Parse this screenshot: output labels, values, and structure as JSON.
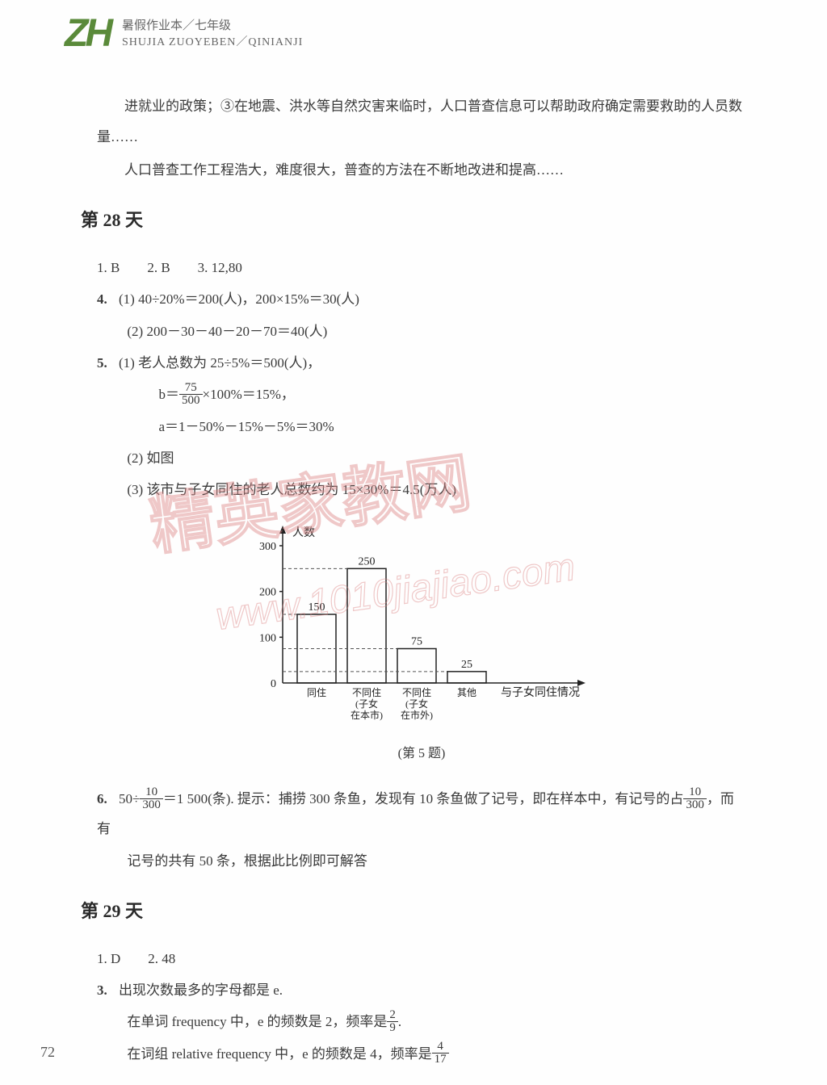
{
  "header": {
    "logo": "ZH",
    "title_cn": "暑假作业本／七年级",
    "title_py": "SHUJIA ZUOYEBEN／QINIANJI"
  },
  "intro": {
    "p1": "进就业的政策；③在地震、洪水等自然灾害来临时，人口普查信息可以帮助政府确定需要救助的人员数量……",
    "p2": "人口普查工作工程浩大，难度很大，普查的方法在不断地改进和提高……"
  },
  "day28": {
    "title": "第 28 天",
    "q1_3": "1.  B　　2.  B　　3.  12,80",
    "q4_label": "4.",
    "q4_1": "(1) 40÷20%＝200(人)，200×15%＝30(人)",
    "q4_2": "(2) 200－30－40－20－70＝40(人)",
    "q5_label": "5.",
    "q5_1": "(1) 老人总数为 25÷5%＝500(人)，",
    "q5_b_pre": "b＝",
    "q5_b_num": "75",
    "q5_b_den": "500",
    "q5_b_post": "×100%＝15%，",
    "q5_a": "a＝1－50%－15%－5%＝30%",
    "q5_2": "(2) 如图",
    "q5_3": "(3) 该市与子女同住的老人总数约为 15×30%＝4.5(万人)",
    "chart": {
      "y_label": "人数",
      "x_label": "与子女同住情况",
      "y_ticks": [
        0,
        100,
        200,
        300
      ],
      "categories": [
        "同住",
        "不同住\n(子女\n在本市)",
        "不同住\n(子女\n在市外)",
        "其他"
      ],
      "bar_values": [
        150,
        250,
        75,
        25
      ],
      "caption": "(第 5 题)"
    },
    "q6_label": "6.",
    "q6_pre": "50÷",
    "q6_f1_num": "10",
    "q6_f1_den": "300",
    "q6_mid": "＝1 500(条). 提示：捕捞 300 条鱼，发现有 10 条鱼做了记号，即在样本中，有记号的占",
    "q6_f2_num": "10",
    "q6_f2_den": "300",
    "q6_post": "，而有",
    "q6_line2": "记号的共有 50 条，根据此比例即可解答"
  },
  "day29": {
    "title": "第 29 天",
    "q1_2": "1.  D　　2.  48",
    "q3_label": "3.",
    "q3_1": "出现次数最多的字母都是 e.",
    "q3_2_pre": "在单词 frequency 中，e 的频数是 2，频率是",
    "q3_2_num": "2",
    "q3_2_den": "9",
    "q3_2_post": ".",
    "q3_3_pre": "在词组 relative frequency 中，e 的频数是 4，频率是",
    "q3_3_num": "4",
    "q3_3_den": "17"
  },
  "page_number": "72",
  "watermark": {
    "text": "精英家教网",
    "url": "www.1010jiajiao.com"
  }
}
